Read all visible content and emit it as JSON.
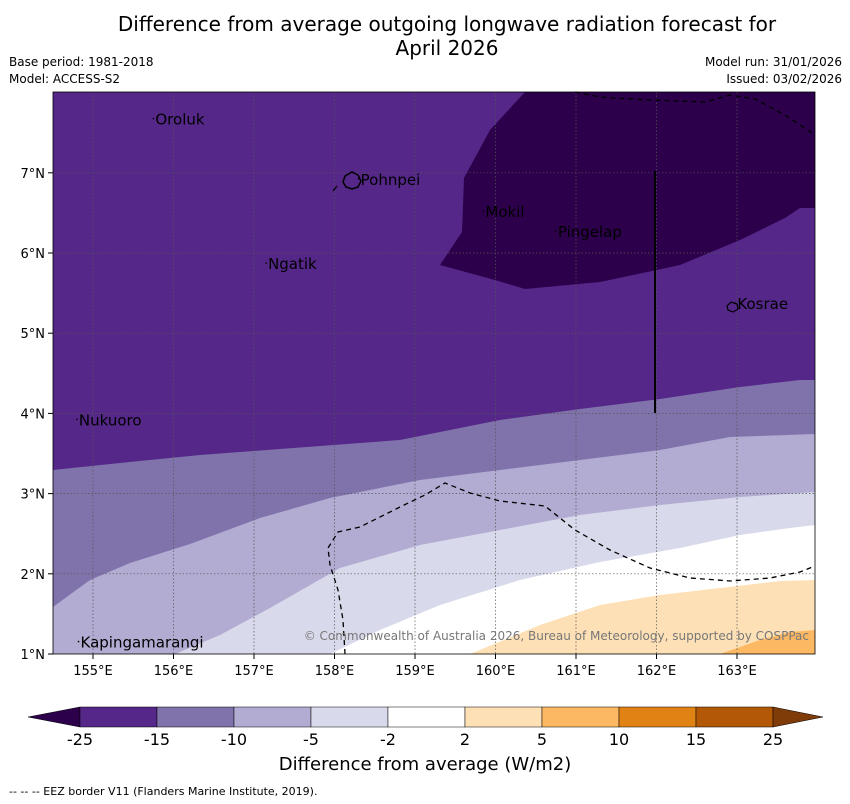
{
  "header": {
    "title_line1": "Difference from average outgoing longwave radiation forecast for",
    "title_line2": "April 2026",
    "base_period": "Base period: 1981-2018",
    "model": "Model: ACCESS-S2",
    "model_run": "Model run: 31/01/2026",
    "issued": "Issued: 03/02/2026"
  },
  "map": {
    "lon_ticks": [
      "155°E",
      "156°E",
      "157°E",
      "158°E",
      "159°E",
      "160°E",
      "161°E",
      "162°E",
      "163°E"
    ],
    "lat_ticks": [
      "1°N",
      "2°N",
      "3°N",
      "4°N",
      "5°N",
      "6°N",
      "7°N"
    ],
    "places": [
      {
        "name": "Oroluk",
        "lon": 155.75,
        "lat": 7.6
      },
      {
        "name": "Pohnpei",
        "lon": 158.3,
        "lat": 6.85
      },
      {
        "name": "Mokil",
        "lon": 159.85,
        "lat": 6.45
      },
      {
        "name": "Pingelap",
        "lon": 160.75,
        "lat": 6.2
      },
      {
        "name": "Ngatik",
        "lon": 157.15,
        "lat": 5.8
      },
      {
        "name": "Kosrae",
        "lon": 162.98,
        "lat": 5.3
      },
      {
        "name": "Nukuoro",
        "lon": 154.8,
        "lat": 3.85
      },
      {
        "name": "Kapingamarangi",
        "lon": 154.82,
        "lat": 1.08
      }
    ],
    "copyright": "© Commonwealth of Australia 2026, Bureau of Meteorology, supported by COSPPac"
  },
  "colorbar": {
    "ticks": [
      "-25",
      "-15",
      "-10",
      "-5",
      "-2",
      "2",
      "5",
      "10",
      "15",
      "25"
    ],
    "colors": [
      "#2d004b",
      "#542788",
      "#8073ac",
      "#b2abd2",
      "#d8daeb",
      "#ffffff",
      "#fee0b6",
      "#fdb863",
      "#e08214",
      "#b35806",
      "#7f3b08"
    ],
    "label": "Difference from average (W/m2)"
  },
  "footnote": "--  --  -- EEZ border V11 (Flanders Marine Institute, 2019)."
}
